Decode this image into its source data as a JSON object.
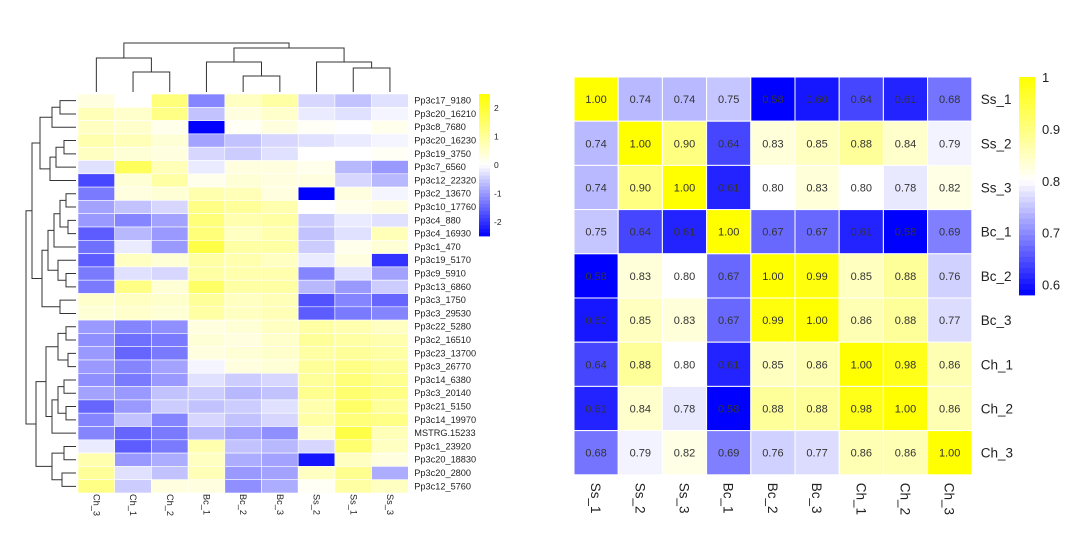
{
  "colors": {
    "low": "#0000ff",
    "mid": "#ffffff",
    "high": "#ffff00",
    "cell_border": "#ffffff",
    "text": "#222222",
    "dendrogram": "#333333"
  },
  "chart_data": [
    {
      "type": "heatmap",
      "subtype": "clustered-expression-heatmap",
      "columns": [
        "Ch_3",
        "Ch_1",
        "Ch_2",
        "Bc_1",
        "Bc_2",
        "Bc_3",
        "Ss_2",
        "Ss_1",
        "Ss_3"
      ],
      "rows": [
        "Pp3c17_9180",
        "Pp3c20_16210",
        "Pp3c8_7680",
        "Pp3c20_16230",
        "Pp3c19_3750",
        "Pp3c7_6560",
        "Pp3c12_22320",
        "Pp3c2_13670",
        "Pp3c10_17760",
        "Pp3c4_880",
        "Pp3c4_16930",
        "Pp3c1_470",
        "Pp3c19_5170",
        "Pp3c9_5910",
        "Pp3c13_6860",
        "Pp3c3_1750",
        "Pp3c3_29530",
        "Pp3c22_5280",
        "Pp3c2_16510",
        "Pp3c23_13700",
        "Pp3c3_26770",
        "Pp3c14_6380",
        "Pp3c3_20140",
        "Pp3c21_5150",
        "Pp3c14_19970",
        "MSTRG.15233",
        "Pp3c1_23920",
        "Pp3c20_18830",
        "Pp3c20_2800",
        "Pp3c12_5760"
      ],
      "values": [
        [
          0.3,
          0.0,
          1.3,
          -1.2,
          0.6,
          0.9,
          -0.4,
          -0.6,
          -0.3
        ],
        [
          0.7,
          0.5,
          1.2,
          -0.6,
          0.3,
          0.5,
          -0.2,
          -0.3,
          -0.1
        ],
        [
          0.6,
          0.5,
          0.2,
          -2.5,
          0.1,
          0.3,
          0.1,
          0.0,
          0.2
        ],
        [
          0.8,
          0.7,
          0.4,
          -0.9,
          -0.6,
          -0.4,
          -0.3,
          -0.2,
          -0.1
        ],
        [
          0.6,
          0.4,
          0.3,
          -0.4,
          -0.5,
          -0.3,
          0.0,
          0.0,
          0.1
        ],
        [
          -0.3,
          1.6,
          0.7,
          -0.2,
          0.3,
          0.3,
          0.2,
          -0.7,
          -1.0
        ],
        [
          -1.8,
          0.4,
          0.9,
          0.2,
          0.4,
          0.3,
          0.3,
          -0.4,
          -0.7
        ],
        [
          -1.3,
          0.3,
          0.4,
          0.8,
          0.7,
          0.3,
          -2.5,
          0.3,
          -0.1
        ],
        [
          -0.9,
          -0.6,
          -0.4,
          1.2,
          1.0,
          0.8,
          0.0,
          0.2,
          0.3
        ],
        [
          -1.0,
          -1.2,
          -0.9,
          1.3,
          0.8,
          0.9,
          -0.5,
          -0.2,
          -0.3
        ],
        [
          -1.6,
          -0.7,
          -1.0,
          1.3,
          0.6,
          0.8,
          -0.6,
          -0.3,
          0.7
        ],
        [
          -1.4,
          -0.2,
          -1.0,
          1.8,
          0.9,
          0.9,
          -0.5,
          0.2,
          0.4
        ],
        [
          -1.6,
          0.6,
          0.4,
          0.9,
          0.8,
          0.6,
          -0.2,
          0.3,
          -2.0
        ],
        [
          -1.3,
          -0.3,
          -0.4,
          0.9,
          0.8,
          0.8,
          -1.2,
          -0.3,
          -0.9
        ],
        [
          -1.3,
          1.2,
          0.4,
          1.5,
          0.9,
          0.9,
          -0.7,
          -1.0,
          -0.5
        ],
        [
          0.5,
          0.6,
          0.5,
          1.0,
          0.6,
          0.7,
          -1.7,
          -1.2,
          -1.5
        ],
        [
          0.4,
          0.5,
          0.4,
          0.9,
          0.6,
          0.7,
          -1.6,
          -1.3,
          -1.2
        ],
        [
          -1.0,
          -1.2,
          -1.1,
          0.3,
          0.4,
          0.6,
          0.9,
          0.8,
          0.6
        ],
        [
          -1.1,
          -1.4,
          -1.3,
          0.4,
          0.3,
          0.5,
          1.0,
          0.9,
          0.8
        ],
        [
          -1.0,
          -1.5,
          -1.3,
          0.3,
          0.4,
          0.5,
          0.9,
          1.0,
          0.9
        ],
        [
          -1.0,
          -1.2,
          -0.9,
          -0.1,
          0.3,
          0.4,
          1.0,
          1.2,
          1.0
        ],
        [
          -1.1,
          -1.3,
          -1.0,
          -0.3,
          -0.5,
          -0.4,
          1.0,
          1.3,
          1.1
        ],
        [
          -0.9,
          -1.0,
          -0.6,
          -0.5,
          -0.7,
          -0.6,
          1.1,
          1.4,
          1.2
        ],
        [
          -1.5,
          -1.0,
          -0.5,
          -0.6,
          -0.5,
          -0.3,
          0.8,
          1.5,
          1.0
        ],
        [
          -1.2,
          -0.6,
          -1.2,
          -0.4,
          -0.6,
          -0.4,
          0.9,
          1.3,
          1.2
        ],
        [
          -1.2,
          -1.5,
          -1.3,
          -0.7,
          -0.9,
          -1.1,
          0.5,
          1.8,
          0.7
        ],
        [
          -0.2,
          -1.6,
          -1.3,
          0.8,
          -0.6,
          -0.7,
          -0.4,
          1.4,
          0.6
        ],
        [
          0.8,
          -1.0,
          -0.8,
          0.6,
          -0.8,
          -0.9,
          -2.3,
          0.6,
          0.3
        ],
        [
          1.0,
          -0.3,
          -0.6,
          0.7,
          -1.0,
          -0.9,
          0.6,
          1.1,
          -0.8
        ],
        [
          1.2,
          -0.5,
          0.3,
          0.3,
          -1.1,
          -0.8,
          0.1,
          0.9,
          0.6
        ]
      ],
      "legend_ticks": [
        2,
        1,
        0,
        -1,
        -2
      ],
      "color_range": [
        -2.5,
        2.5
      ]
    },
    {
      "type": "heatmap",
      "subtype": "correlation-matrix",
      "rows": [
        "Ss_1",
        "Ss_2",
        "Ss_3",
        "Bc_1",
        "Bc_2",
        "Bc_3",
        "Ch_1",
        "Ch_2",
        "Ch_3"
      ],
      "columns": [
        "Ss_1",
        "Ss_2",
        "Ss_3",
        "Bc_1",
        "Bc_2",
        "Bc_3",
        "Ch_1",
        "Ch_2",
        "Ch_3"
      ],
      "values": [
        [
          1.0,
          0.74,
          0.74,
          0.75,
          0.58,
          0.6,
          0.64,
          0.61,
          0.68
        ],
        [
          0.74,
          1.0,
          0.9,
          0.64,
          0.83,
          0.85,
          0.88,
          0.84,
          0.79
        ],
        [
          0.74,
          0.9,
          1.0,
          0.61,
          0.8,
          0.83,
          0.8,
          0.78,
          0.82
        ],
        [
          0.75,
          0.64,
          0.61,
          1.0,
          0.67,
          0.67,
          0.61,
          0.58,
          0.69
        ],
        [
          0.58,
          0.83,
          0.8,
          0.67,
          1.0,
          0.99,
          0.85,
          0.88,
          0.76
        ],
        [
          0.6,
          0.85,
          0.83,
          0.67,
          0.99,
          1.0,
          0.86,
          0.88,
          0.77
        ],
        [
          0.64,
          0.88,
          0.8,
          0.61,
          0.85,
          0.86,
          1.0,
          0.98,
          0.86
        ],
        [
          0.61,
          0.84,
          0.78,
          0.58,
          0.88,
          0.88,
          0.98,
          1.0,
          0.86
        ],
        [
          0.68,
          0.79,
          0.82,
          0.69,
          0.76,
          0.77,
          0.86,
          0.86,
          1.0
        ]
      ],
      "legend_ticks": [
        "1",
        "0.9",
        "0.8",
        "0.7",
        "0.6"
      ],
      "color_range": [
        0.58,
        1.0
      ]
    }
  ]
}
